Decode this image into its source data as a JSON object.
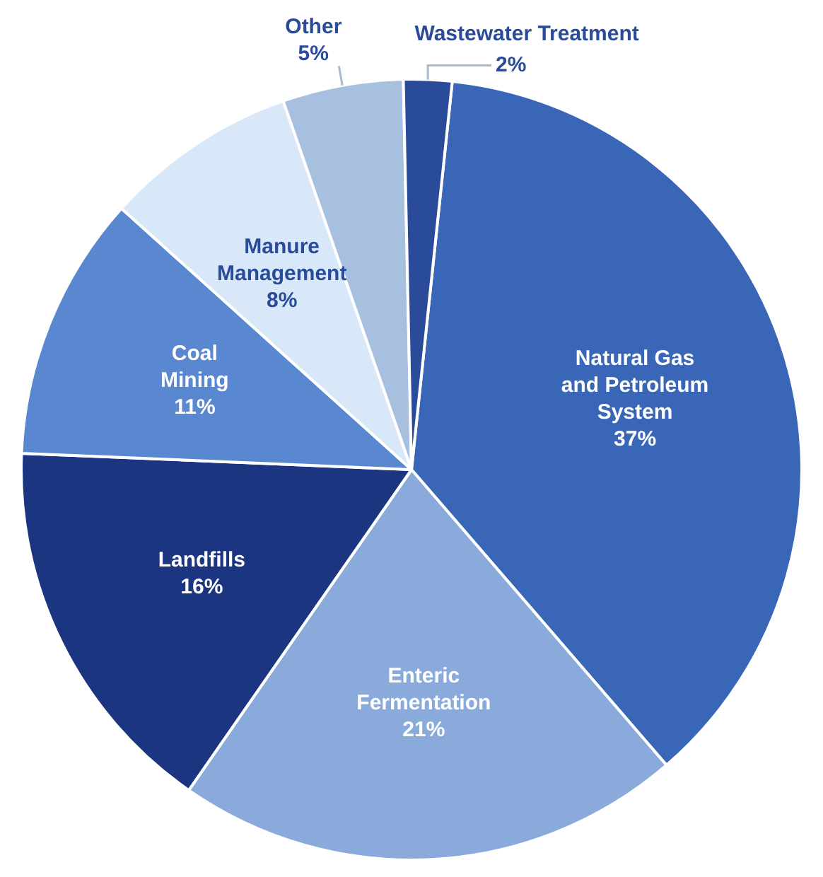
{
  "chart_data": {
    "type": "pie",
    "categories": [
      "Natural Gas and Petroleum System",
      "Enteric Fermentation",
      "Landfills",
      "Coal Mining",
      "Manure Management",
      "Other",
      "Wastewater Treatment"
    ],
    "values": [
      37,
      21,
      16,
      11,
      8,
      5,
      2
    ],
    "colors": [
      "#3a66b8",
      "#8aaadc",
      "#1c3580",
      "#5a88d0",
      "#d8e8f8",
      "#a8c0e0",
      "#2a4a9a"
    ],
    "value_labels": [
      "37%",
      "21%",
      "16%",
      "11%",
      "8%",
      "5%",
      "2%"
    ],
    "legend": false
  }
}
